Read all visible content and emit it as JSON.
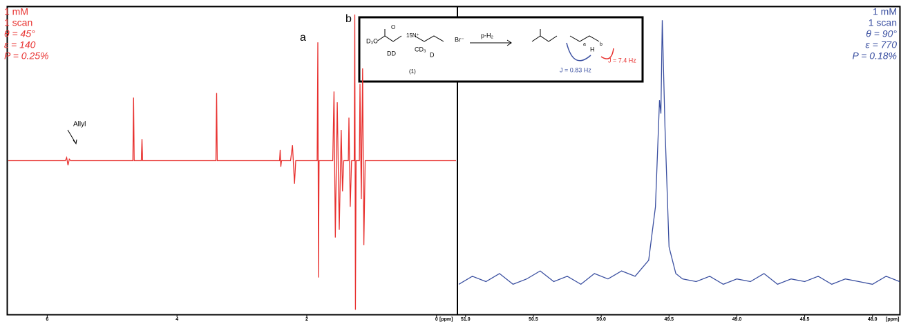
{
  "chart_data": [
    {
      "type": "line",
      "color": "#e8312f",
      "xlabel": "[ppm]",
      "annotations": [
        "1 mM",
        "1 scan",
        "θ = 45°",
        "ε = 140",
        "P = 0.25%"
      ],
      "peak_labels": [
        "a",
        "b",
        "Allyl"
      ],
      "xlim": [
        6.6,
        -0.3
      ],
      "ylim": [
        -1,
        1
      ],
      "xticks": [
        6,
        4,
        2,
        0
      ],
      "x": [
        6.6,
        5.72,
        5.7,
        5.68,
        5.66,
        5.64,
        4.68,
        4.67,
        4.66,
        4.55,
        4.54,
        4.53,
        3.4,
        3.39,
        3.38,
        2.42,
        2.41,
        2.4,
        2.39,
        2.25,
        2.22,
        2.19,
        2.17,
        1.84,
        1.83,
        1.82,
        1.81,
        1.6,
        1.58,
        1.56,
        1.53,
        1.5,
        1.47,
        1.45,
        1.43,
        1.36,
        1.35,
        1.33,
        1.31,
        1.27,
        1.26,
        1.25,
        1.24,
        1.19,
        1.18,
        1.16,
        1.14,
        1.12,
        1.1,
        -0.3
      ],
      "values": [
        0,
        0,
        0.02,
        -0.03,
        0.01,
        0,
        0,
        0.41,
        0,
        0,
        0.14,
        0,
        0,
        0.44,
        0,
        0,
        0.07,
        -0.04,
        0,
        0,
        0.1,
        -0.15,
        0,
        0,
        0.77,
        -0.76,
        0,
        0,
        0.45,
        -0.5,
        0.38,
        -0.45,
        0.2,
        -0.2,
        0,
        0,
        0.28,
        -0.3,
        0,
        0,
        0.95,
        -0.97,
        0,
        0,
        0.5,
        -0.25,
        0.6,
        -0.55,
        0,
        0
      ]
    },
    {
      "type": "line",
      "color": "#3a4fa0",
      "xlabel": "[ppm]",
      "annotations": [
        "1 mM",
        "1 scan",
        "θ = 90°",
        "ε = 770",
        "P = 0.18%"
      ],
      "xlim": [
        51.05,
        47.8
      ],
      "ylim": [
        -0.103,
        1.05
      ],
      "xticks": [
        {
          "value": 51,
          "label": "51.0"
        },
        50.5,
        {
          "value": 50,
          "label": "50.0"
        },
        49.5,
        {
          "value": 49,
          "label": "49.0"
        },
        48.5,
        {
          "value": 48,
          "label": "48.0"
        }
      ],
      "x": [
        51.05,
        50.95,
        50.85,
        50.75,
        50.65,
        50.55,
        50.45,
        50.35,
        50.25,
        50.15,
        50.05,
        49.95,
        49.85,
        49.75,
        49.7,
        49.65,
        49.6,
        49.57,
        49.56,
        49.55,
        49.53,
        49.5,
        49.45,
        49.4,
        49.3,
        49.2,
        49.1,
        49.0,
        48.9,
        48.8,
        48.7,
        48.6,
        48.5,
        48.4,
        48.3,
        48.2,
        48.1,
        48.0,
        47.9,
        47.8
      ],
      "values": [
        0.01,
        0.04,
        0.02,
        0.05,
        0.01,
        0.03,
        0.06,
        0.02,
        0.04,
        0.01,
        0.05,
        0.03,
        0.06,
        0.04,
        0.07,
        0.1,
        0.3,
        0.7,
        0.65,
        1.0,
        0.6,
        0.15,
        0.05,
        0.03,
        0.02,
        0.04,
        0.01,
        0.03,
        0.02,
        0.05,
        0.01,
        0.03,
        0.02,
        0.04,
        0.01,
        0.03,
        0.02,
        0.01,
        0.04,
        0.02
      ]
    }
  ],
  "scheme": {
    "labels": [
      "D₃C",
      "O",
      "15N⁺",
      "CD₃",
      "DD",
      "D",
      "Br⁻",
      "p-H₂",
      "(1)",
      "H",
      "a",
      "b",
      "J = 0.83 Hz",
      "J = 7.4 Hz"
    ]
  }
}
